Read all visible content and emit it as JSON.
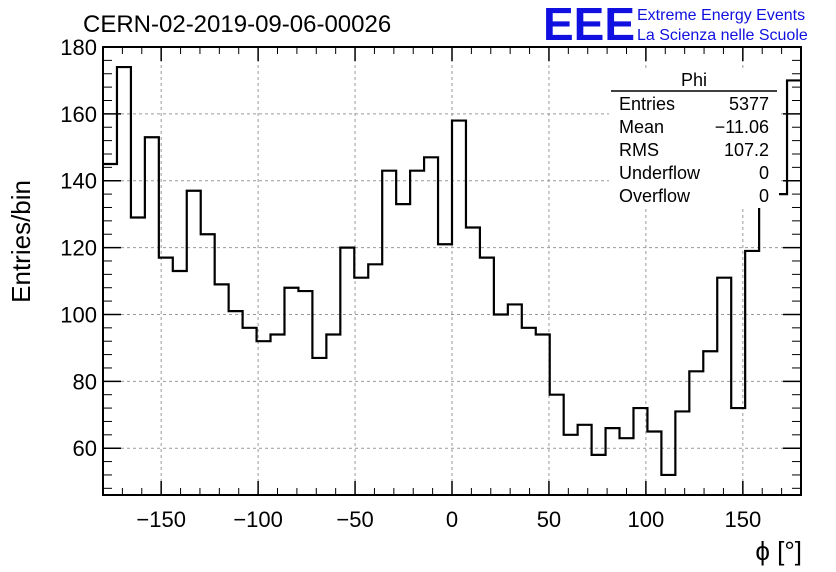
{
  "chart_data": {
    "type": "histogram",
    "title": "CERN-02-2019-09-06-00026",
    "xlabel": "ϕ [°]",
    "ylabel": "Entries/bin",
    "xlim": [
      -180,
      180
    ],
    "ylim": [
      46,
      180
    ],
    "x_ticks": [
      -150,
      -100,
      -50,
      0,
      50,
      100,
      150
    ],
    "y_ticks": [
      60,
      80,
      100,
      120,
      140,
      160,
      180
    ],
    "grid": true,
    "bin_width": 7.2,
    "bin_edges_start": -180,
    "values": [
      145,
      174,
      129,
      153,
      117,
      113,
      137,
      124,
      109,
      101,
      96,
      92,
      94,
      108,
      107,
      87,
      94,
      120,
      111,
      115,
      143,
      133,
      143,
      147,
      121,
      158,
      126,
      117,
      100,
      103,
      96,
      94,
      76,
      64,
      67,
      58,
      66,
      63,
      72,
      65,
      52,
      71,
      83,
      89,
      111,
      72,
      119,
      136,
      136,
      170
    ],
    "line_color": "#000000"
  },
  "stats_box": {
    "name": "Phi",
    "rows": [
      {
        "label": "Entries",
        "value": "5377"
      },
      {
        "label": "Mean",
        "value": "−11.06"
      },
      {
        "label": "RMS",
        "value": "107.2"
      },
      {
        "label": "Underflow",
        "value": "0"
      },
      {
        "label": "Overflow",
        "value": "0"
      }
    ]
  },
  "logo": {
    "mark": "EEE",
    "line1": "Extreme Energy Events",
    "line2": "La Scienza nelle Scuole",
    "color": "#1010e0"
  }
}
